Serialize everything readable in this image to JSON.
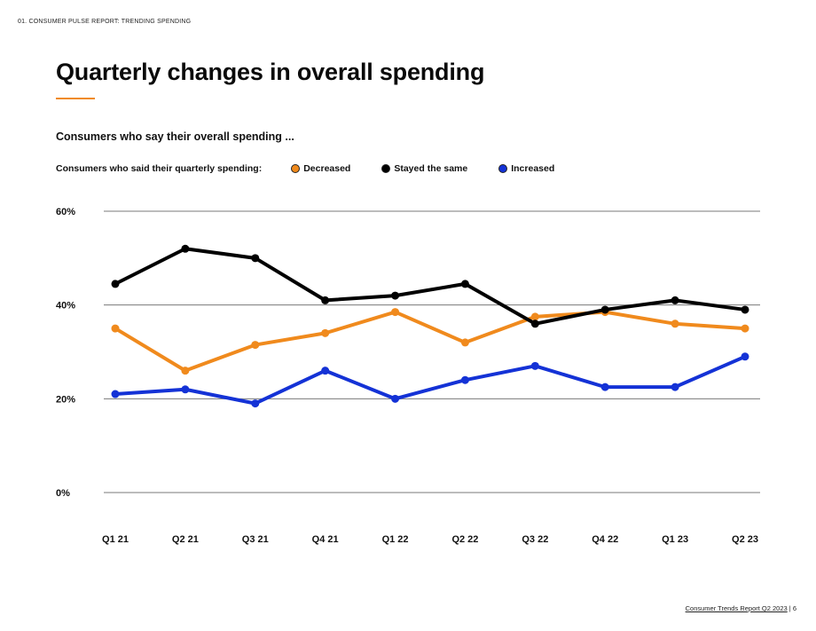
{
  "header": {
    "section_tag": "01. CONSUMER PULSE REPORT: TRENDING SPENDING",
    "title": "Quarterly changes in overall spending"
  },
  "chart_subtitle": "Consumers who say their overall spending ...",
  "legend": {
    "title": "Consumers who said their quarterly spending:",
    "items": [
      {
        "label": "Decreased",
        "color": "#f08a1d"
      },
      {
        "label": "Stayed the same",
        "color": "#000000"
      },
      {
        "label": "Increased",
        "color": "#1432d6"
      }
    ]
  },
  "chart_data": {
    "type": "line",
    "title": "Quarterly changes in overall spending",
    "subtitle": "Consumers who say their overall spending ...",
    "xlabel": "",
    "ylabel": "",
    "categories": [
      "Q1 21",
      "Q2 21",
      "Q3 21",
      "Q4 21",
      "Q1 22",
      "Q2 22",
      "Q3 22",
      "Q4 22",
      "Q1 23",
      "Q2 23"
    ],
    "y_ticks": [
      "0%",
      "20%",
      "40%",
      "60%"
    ],
    "y_tick_values": [
      0,
      20,
      40,
      60
    ],
    "ylim": [
      0,
      60
    ],
    "grid": true,
    "legend_position": "top",
    "series": [
      {
        "name": "Decreased",
        "color": "#f08a1d",
        "values": [
          35,
          26,
          31.5,
          34,
          38.5,
          32,
          37.5,
          38.5,
          36,
          35
        ]
      },
      {
        "name": "Stayed the same",
        "color": "#000000",
        "values": [
          44.5,
          52,
          50,
          41,
          42,
          44.5,
          36,
          39,
          41,
          39
        ]
      },
      {
        "name": "Increased",
        "color": "#1432d6",
        "values": [
          21,
          22,
          19,
          26,
          20,
          24,
          27,
          22.5,
          22.5,
          29
        ]
      }
    ]
  },
  "footer": {
    "report_name": "Consumer Trends Report Q2 2023",
    "separator": "|",
    "page_number": "6"
  }
}
